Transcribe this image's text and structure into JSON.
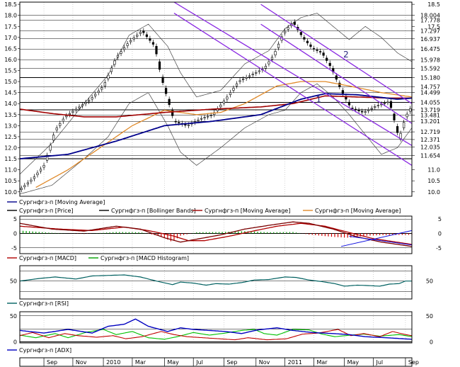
{
  "colors": {
    "price": "#000000",
    "ma_blue": "#00008b",
    "ma_red": "#a00000",
    "ma_orange": "#e08a2a",
    "bollinger": "#000000",
    "channel": "#8b2be2",
    "macd_line": "#b00000",
    "macd_hist_pos": "#00a000",
    "macd_hist_neg": "#d00000",
    "macd_trend": "#1010e0",
    "rsi": "#006060",
    "adx": "#0000c0",
    "di_plus": "#00c000",
    "di_minus": "#c00000"
  },
  "x_axis": {
    "labels": [
      "Sep",
      "Nov",
      "2010",
      "Mar",
      "May",
      "Jul",
      "Sep",
      "Nov",
      "2011",
      "Mar",
      "May",
      "Jul",
      "Sep"
    ],
    "label_index": [
      15,
      33,
      52,
      70,
      90,
      108,
      127,
      147,
      165,
      183,
      202,
      220,
      240
    ]
  },
  "annotations": {
    "channel_1": "1",
    "channel_2": "2"
  },
  "price_panel": {
    "y_ticks": [
      "18.5",
      "18.0",
      "17.5",
      "17.0",
      "16.5",
      "16.0",
      "15.5",
      "15.0",
      "14.5",
      "14.0",
      "13.5",
      "13.0",
      "12.5",
      "12.0",
      "11.5",
      "11.0",
      "10.5",
      "10.0"
    ],
    "right_labels": [
      "18.5",
      "18.004",
      "17.778",
      "17.5",
      "17.297",
      "16.937",
      "16.475",
      "15.978",
      "15.592",
      "15.180",
      "14.757",
      "14.499",
      "14.055",
      "13.719",
      "13.481",
      "13.201",
      "12.719",
      "12.371",
      "12.035",
      "11.654",
      "11.0",
      "10.5",
      "10.0"
    ],
    "h_levels": [
      18.004,
      17.778,
      17.297,
      16.937,
      16.475,
      15.978,
      15.592,
      15.18,
      14.757,
      14.499,
      14.055,
      13.719,
      13.481,
      13.201,
      12.719,
      12.371,
      12.035,
      11.654
    ],
    "legend": [
      "Сургнфгз-п [Moving Average]",
      "Сургнфгз-п [Price]",
      "Сургнфгз-п [Bollinger Bands]",
      "Сургнфгз-п [Moving Average]",
      "Сургнфгз-п [Moving Average]"
    ]
  },
  "macd_panel": {
    "y_ticks": [
      "5",
      "0",
      "-5"
    ],
    "right_ticks": [
      "5",
      "0",
      "-5"
    ],
    "legend": [
      "Сургнфгз-п [MACD]",
      "Сургнфгз-п [MACD Histogram]"
    ]
  },
  "rsi_panel": {
    "y_ticks": [
      "50"
    ],
    "right_ticks": [
      "50"
    ],
    "legend": [
      "Сургнфгз-п [RSI]"
    ]
  },
  "adx_panel": {
    "y_ticks": [
      "50",
      "0"
    ],
    "right_ticks": [
      "50",
      "0"
    ],
    "legend": [
      "Сургнфгз-п [ADX]"
    ]
  },
  "chart_data": [
    {
      "type": "candlestick",
      "title": "",
      "x_start": "2009-07",
      "x_end": "2011-09",
      "x_ticks": [
        "Sep",
        "Nov",
        "2010",
        "Mar",
        "May",
        "Jul",
        "Sep",
        "Nov",
        "2011",
        "Mar",
        "May",
        "Jul",
        "Sep"
      ],
      "ylim": [
        9.8,
        18.6
      ],
      "price_anchors": [
        [
          0,
          10.1
        ],
        [
          8,
          10.6
        ],
        [
          15,
          11.2
        ],
        [
          22,
          12.8
        ],
        [
          28,
          13.4
        ],
        [
          36,
          13.8
        ],
        [
          44,
          14.2
        ],
        [
          52,
          14.8
        ],
        [
          60,
          16.1
        ],
        [
          68,
          16.8
        ],
        [
          76,
          17.3
        ],
        [
          84,
          16.6
        ],
        [
          88,
          15.2
        ],
        [
          96,
          13.2
        ],
        [
          104,
          13.0
        ],
        [
          112,
          13.3
        ],
        [
          120,
          13.5
        ],
        [
          128,
          14.2
        ],
        [
          136,
          15.0
        ],
        [
          144,
          15.3
        ],
        [
          152,
          15.6
        ],
        [
          158,
          16.2
        ],
        [
          164,
          17.2
        ],
        [
          170,
          17.7
        ],
        [
          176,
          17.0
        ],
        [
          182,
          16.5
        ],
        [
          188,
          16.3
        ],
        [
          194,
          15.6
        ],
        [
          200,
          14.6
        ],
        [
          206,
          13.8
        ],
        [
          214,
          13.6
        ],
        [
          222,
          13.9
        ],
        [
          230,
          14.1
        ],
        [
          236,
          12.4
        ],
        [
          240,
          13.4
        ],
        [
          244,
          13.9
        ]
      ],
      "moving_average_blue_anchors": [
        [
          0,
          11.5
        ],
        [
          30,
          11.7
        ],
        [
          60,
          12.3
        ],
        [
          90,
          13.0
        ],
        [
          120,
          13.2
        ],
        [
          150,
          13.5
        ],
        [
          175,
          14.2
        ],
        [
          190,
          14.45
        ],
        [
          210,
          14.4
        ],
        [
          235,
          14.2
        ],
        [
          244,
          14.25
        ]
      ],
      "moving_average_red_anchors": [
        [
          0,
          13.75
        ],
        [
          20,
          13.55
        ],
        [
          40,
          13.4
        ],
        [
          60,
          13.4
        ],
        [
          90,
          13.6
        ],
        [
          120,
          13.75
        ],
        [
          150,
          13.85
        ],
        [
          170,
          14.0
        ],
        [
          190,
          14.35
        ],
        [
          210,
          14.3
        ],
        [
          230,
          14.25
        ],
        [
          244,
          14.25
        ]
      ],
      "moving_average_orange_anchors": [
        [
          10,
          10.2
        ],
        [
          30,
          11.0
        ],
        [
          50,
          12.0
        ],
        [
          70,
          13.0
        ],
        [
          90,
          13.7
        ],
        [
          110,
          13.5
        ],
        [
          125,
          13.6
        ],
        [
          140,
          14.0
        ],
        [
          160,
          14.8
        ],
        [
          175,
          15.0
        ],
        [
          190,
          15.0
        ],
        [
          205,
          14.8
        ],
        [
          225,
          14.5
        ],
        [
          244,
          14.3
        ]
      ],
      "bollinger_upper_anchors": [
        [
          0,
          10.8
        ],
        [
          20,
          12.2
        ],
        [
          40,
          14.0
        ],
        [
          55,
          15.3
        ],
        [
          68,
          17.1
        ],
        [
          80,
          17.6
        ],
        [
          92,
          16.6
        ],
        [
          100,
          15.4
        ],
        [
          110,
          14.3
        ],
        [
          125,
          14.6
        ],
        [
          140,
          15.8
        ],
        [
          155,
          16.4
        ],
        [
          165,
          17.4
        ],
        [
          175,
          17.9
        ],
        [
          185,
          18.1
        ],
        [
          195,
          17.5
        ],
        [
          205,
          16.9
        ],
        [
          215,
          17.5
        ],
        [
          225,
          17.0
        ],
        [
          235,
          16.3
        ],
        [
          244,
          15.9
        ]
      ],
      "bollinger_lower_anchors": [
        [
          0,
          9.9
        ],
        [
          20,
          10.3
        ],
        [
          40,
          11.5
        ],
        [
          55,
          12.5
        ],
        [
          68,
          14.0
        ],
        [
          80,
          14.5
        ],
        [
          92,
          13.0
        ],
        [
          100,
          11.8
        ],
        [
          110,
          11.2
        ],
        [
          125,
          12.0
        ],
        [
          140,
          12.9
        ],
        [
          155,
          13.5
        ],
        [
          165,
          13.7
        ],
        [
          175,
          14.5
        ],
        [
          185,
          14.9
        ],
        [
          195,
          14.3
        ],
        [
          205,
          13.5
        ],
        [
          215,
          12.6
        ],
        [
          225,
          11.7
        ],
        [
          235,
          12.0
        ],
        [
          244,
          12.9
        ]
      ],
      "channel_lines": [
        {
          "name": "1",
          "from": [
            96,
            18.6
          ],
          "to": [
            244,
            12.1
          ]
        },
        {
          "name": "1",
          "from": [
            96,
            18.1
          ],
          "to": [
            244,
            11.2
          ]
        },
        {
          "name": "2",
          "from": [
            150,
            18.5
          ],
          "to": [
            244,
            14.0
          ]
        },
        {
          "name": "2",
          "from": [
            150,
            17.6
          ],
          "to": [
            244,
            13.1
          ]
        }
      ]
    },
    {
      "type": "line",
      "title": "",
      "ylim": [
        -7,
        6
      ],
      "macd_anchors": [
        [
          0,
          3.5
        ],
        [
          20,
          1.5
        ],
        [
          40,
          0.8
        ],
        [
          60,
          2.5
        ],
        [
          75,
          1.5
        ],
        [
          90,
          -1.5
        ],
        [
          100,
          -3.0
        ],
        [
          110,
          -2.0
        ],
        [
          125,
          -0.5
        ],
        [
          140,
          1.5
        ],
        [
          155,
          2.8
        ],
        [
          170,
          4.0
        ],
        [
          180,
          3.5
        ],
        [
          195,
          1.5
        ],
        [
          210,
          -1.2
        ],
        [
          225,
          -3.0
        ],
        [
          244,
          -4.5
        ]
      ],
      "signal_anchors": [
        [
          0,
          2.5
        ],
        [
          25,
          1.5
        ],
        [
          45,
          1.0
        ],
        [
          65,
          2.2
        ],
        [
          80,
          1.0
        ],
        [
          95,
          -0.8
        ],
        [
          105,
          -2.5
        ],
        [
          115,
          -2.5
        ],
        [
          130,
          -1.0
        ],
        [
          145,
          0.8
        ],
        [
          160,
          2.5
        ],
        [
          175,
          3.5
        ],
        [
          190,
          2.5
        ],
        [
          205,
          0.3
        ],
        [
          220,
          -1.8
        ],
        [
          244,
          -3.8
        ]
      ],
      "histogram_anchors": [
        [
          0,
          1.0
        ],
        [
          20,
          0.2
        ],
        [
          40,
          -0.2
        ],
        [
          60,
          0.5
        ],
        [
          75,
          0.4
        ],
        [
          88,
          -1.0
        ],
        [
          95,
          -3.0
        ],
        [
          100,
          -0.8
        ],
        [
          110,
          0.4
        ],
        [
          125,
          0.5
        ],
        [
          140,
          0.8
        ],
        [
          155,
          0.4
        ],
        [
          170,
          0.5
        ],
        [
          180,
          -0.4
        ],
        [
          195,
          -1.2
        ],
        [
          205,
          -1.5
        ],
        [
          215,
          -0.8
        ],
        [
          225,
          -0.6
        ],
        [
          240,
          -0.5
        ]
      ],
      "trend_lines": [
        {
          "from": [
            200,
            -4.5
          ],
          "to": [
            244,
            1.0
          ]
        },
        {
          "from": [
            205,
            -1.0
          ],
          "to": [
            244,
            -4.0
          ]
        }
      ]
    },
    {
      "type": "line",
      "title": "",
      "ylim": [
        15,
        80
      ],
      "rsi_anchors": [
        [
          0,
          50
        ],
        [
          12,
          55
        ],
        [
          22,
          58
        ],
        [
          35,
          54
        ],
        [
          45,
          60
        ],
        [
          55,
          61
        ],
        [
          65,
          62
        ],
        [
          75,
          58
        ],
        [
          85,
          50
        ],
        [
          95,
          43
        ],
        [
          100,
          48
        ],
        [
          108,
          46
        ],
        [
          116,
          42
        ],
        [
          122,
          45
        ],
        [
          130,
          44
        ],
        [
          138,
          47
        ],
        [
          146,
          52
        ],
        [
          155,
          53
        ],
        [
          165,
          58
        ],
        [
          172,
          57
        ],
        [
          180,
          52
        ],
        [
          188,
          49
        ],
        [
          196,
          45
        ],
        [
          202,
          40
        ],
        [
          210,
          42
        ],
        [
          218,
          41
        ],
        [
          224,
          40
        ],
        [
          230,
          44
        ],
        [
          236,
          45
        ],
        [
          240,
          50
        ],
        [
          244,
          50
        ]
      ]
    },
    {
      "type": "line",
      "title": "",
      "ylim": [
        -2,
        58
      ],
      "adx_anchors": [
        [
          0,
          22
        ],
        [
          15,
          17
        ],
        [
          30,
          24
        ],
        [
          45,
          17
        ],
        [
          55,
          30
        ],
        [
          65,
          34
        ],
        [
          72,
          44
        ],
        [
          80,
          30
        ],
        [
          92,
          20
        ],
        [
          100,
          27
        ],
        [
          108,
          24
        ],
        [
          118,
          22
        ],
        [
          128,
          20
        ],
        [
          138,
          16
        ],
        [
          148,
          23
        ],
        [
          160,
          27
        ],
        [
          170,
          22
        ],
        [
          182,
          18
        ],
        [
          195,
          16
        ],
        [
          205,
          14
        ],
        [
          215,
          10
        ],
        [
          228,
          8
        ],
        [
          244,
          5
        ]
      ],
      "di_plus_anchors": [
        [
          0,
          13
        ],
        [
          10,
          8
        ],
        [
          22,
          16
        ],
        [
          30,
          8
        ],
        [
          42,
          19
        ],
        [
          52,
          24
        ],
        [
          60,
          14
        ],
        [
          70,
          20
        ],
        [
          80,
          8
        ],
        [
          90,
          5
        ],
        [
          98,
          10
        ],
        [
          108,
          18
        ],
        [
          118,
          13
        ],
        [
          128,
          17
        ],
        [
          138,
          22
        ],
        [
          146,
          24
        ],
        [
          152,
          16
        ],
        [
          160,
          13
        ],
        [
          170,
          24
        ],
        [
          180,
          23
        ],
        [
          188,
          15
        ],
        [
          196,
          10
        ],
        [
          206,
          13
        ],
        [
          214,
          15
        ],
        [
          224,
          11
        ],
        [
          236,
          14
        ],
        [
          244,
          10
        ]
      ],
      "di_minus_anchors": [
        [
          0,
          12
        ],
        [
          8,
          18
        ],
        [
          18,
          8
        ],
        [
          28,
          16
        ],
        [
          36,
          12
        ],
        [
          48,
          9
        ],
        [
          58,
          12
        ],
        [
          66,
          6
        ],
        [
          76,
          10
        ],
        [
          88,
          20
        ],
        [
          96,
          14
        ],
        [
          104,
          10
        ],
        [
          114,
          8
        ],
        [
          124,
          6
        ],
        [
          134,
          4
        ],
        [
          142,
          8
        ],
        [
          154,
          4
        ],
        [
          166,
          6
        ],
        [
          176,
          15
        ],
        [
          186,
          17
        ],
        [
          198,
          24
        ],
        [
          206,
          12
        ],
        [
          214,
          16
        ],
        [
          224,
          10
        ],
        [
          232,
          20
        ],
        [
          240,
          14
        ],
        [
          244,
          12
        ]
      ]
    }
  ]
}
